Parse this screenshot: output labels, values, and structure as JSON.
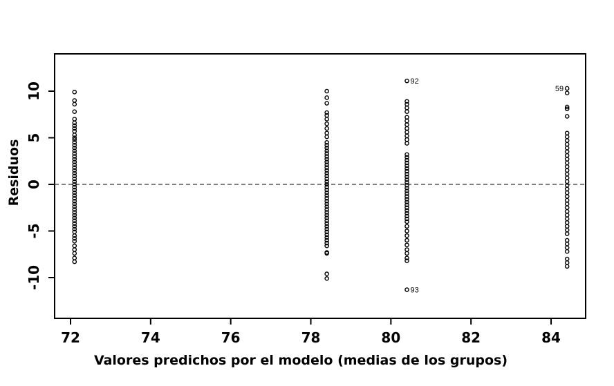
{
  "chart_data": {
    "type": "scatter",
    "title": "",
    "xlabel": "Valores predichos por el modelo (medias de los grupos)",
    "ylabel": "Residuos",
    "xlim": [
      71.5,
      85
    ],
    "ylim": [
      -14,
      14
    ],
    "x_ticks": [
      72,
      74,
      76,
      78,
      80,
      82,
      84
    ],
    "y_ticks": [
      -10,
      -5,
      0,
      5,
      10
    ],
    "reference_line": {
      "y": 0,
      "style": "dashed",
      "color": "#555555"
    },
    "grid": false,
    "legend": "none",
    "series": [
      {
        "x": 72.1,
        "values": [
          9.9,
          9.0,
          8.6,
          7.8,
          7.0,
          6.6,
          6.3,
          6.0,
          5.7,
          5.3,
          5.0,
          4.8,
          4.5,
          4.2,
          3.9,
          3.6,
          3.3,
          3.0,
          2.7,
          2.4,
          2.1,
          1.8,
          1.5,
          1.2,
          0.9,
          0.6,
          0.3,
          0.0,
          -0.3,
          -0.6,
          -0.9,
          -1.2,
          -1.5,
          -1.8,
          -2.1,
          -2.4,
          -2.7,
          -3.0,
          -3.3,
          -3.6,
          -3.9,
          -4.2,
          -4.5,
          -4.8,
          -5.1,
          -5.5,
          -5.8,
          -6.1,
          -6.6,
          -7.0,
          -7.4,
          -7.9,
          -8.3
        ]
      },
      {
        "x": 78.4,
        "values": [
          10.0,
          9.3,
          8.7,
          7.7,
          7.4,
          7.0,
          6.5,
          6.0,
          5.5,
          5.1,
          4.5,
          4.2,
          3.9,
          3.6,
          3.3,
          3.0,
          2.7,
          2.4,
          2.1,
          1.8,
          1.5,
          1.2,
          0.9,
          0.6,
          0.3,
          0.0,
          -0.3,
          -0.6,
          -0.9,
          -1.2,
          -1.5,
          -1.8,
          -2.1,
          -2.4,
          -2.7,
          -3.0,
          -3.3,
          -3.6,
          -3.9,
          -4.2,
          -4.5,
          -4.8,
          -5.1,
          -5.4,
          -5.7,
          -6.0,
          -6.3,
          -6.6,
          -7.3,
          -7.4,
          -9.6,
          -10.1
        ]
      },
      {
        "x": 80.4,
        "values": [
          11.1,
          8.9,
          8.6,
          8.2,
          7.8,
          7.2,
          6.8,
          6.4,
          6.0,
          5.6,
          5.2,
          4.8,
          4.4,
          3.2,
          2.9,
          2.6,
          2.3,
          2.0,
          1.7,
          1.4,
          1.1,
          0.8,
          0.5,
          0.2,
          -0.1,
          -0.4,
          -0.7,
          -1.0,
          -1.3,
          -1.6,
          -1.9,
          -2.2,
          -2.5,
          -2.8,
          -3.1,
          -3.4,
          -3.7,
          -4.0,
          -4.5,
          -5.0,
          -5.5,
          -6.0,
          -6.5,
          -7.0,
          -7.4,
          -7.9,
          -8.2,
          -11.3
        ]
      },
      {
        "x": 84.4,
        "values": [
          10.3,
          9.8,
          8.3,
          8.1,
          7.3,
          5.5,
          5.1,
          4.7,
          4.3,
          3.9,
          3.5,
          3.1,
          2.7,
          2.3,
          1.9,
          1.5,
          1.1,
          0.7,
          0.3,
          -0.1,
          -0.5,
          -0.9,
          -1.3,
          -1.7,
          -2.1,
          -2.5,
          -2.9,
          -3.3,
          -3.7,
          -4.1,
          -4.5,
          -4.9,
          -5.3,
          -6.0,
          -6.4,
          -6.8,
          -7.2,
          -8.0,
          -8.4,
          -8.8
        ]
      }
    ],
    "point_labels": [
      {
        "x": 80.4,
        "y": 11.1,
        "text": "92",
        "side": "right"
      },
      {
        "x": 80.4,
        "y": -11.3,
        "text": "93",
        "side": "right"
      },
      {
        "x": 84.4,
        "y": 10.3,
        "text": "59",
        "side": "left"
      }
    ]
  }
}
